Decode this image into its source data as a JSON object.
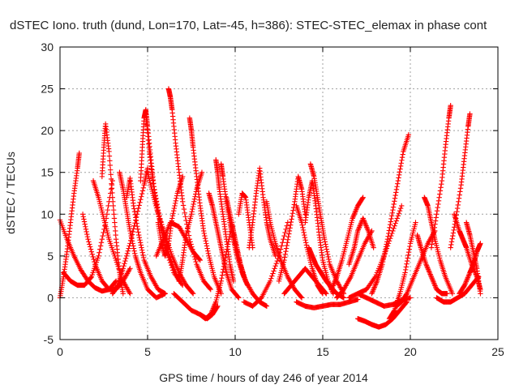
{
  "chart_data": {
    "type": "scatter",
    "title": "dSTEC Iono. truth (dund, Lon=170, Lat=-45, h=386): STEC-STEC_elemax in phase cont",
    "xlabel": "GPS time / hours of day 246 of year 2014",
    "ylabel": "dSTEC  / TECUs",
    "xlim": [
      0,
      25
    ],
    "ylim": [
      -5,
      30
    ],
    "x_ticks": [
      "0",
      "5",
      "10",
      "15",
      "20",
      "25"
    ],
    "y_ticks": [
      "-5",
      "0",
      "5",
      "10",
      "15",
      "20",
      "25",
      "30"
    ],
    "grid": true,
    "marker": "plus",
    "color": "#ff0000",
    "series": [
      {
        "x": [
          0.0,
          0.4,
          0.8,
          1.2,
          1.6,
          2.0,
          2.4,
          2.8,
          3.2
        ],
        "y": [
          9.3,
          7.0,
          5.0,
          3.3,
          2.0,
          1.2,
          0.8,
          1.0,
          2.0
        ]
      },
      {
        "x": [
          0.0,
          0.2,
          0.4,
          0.6,
          0.8,
          1.0,
          1.1
        ],
        "y": [
          0.0,
          2.5,
          5.5,
          9.0,
          12.5,
          15.5,
          17.3
        ]
      },
      {
        "x": [
          0.2,
          0.6,
          1.0,
          1.4,
          1.8,
          2.2,
          2.6,
          3.0
        ],
        "y": [
          3.0,
          2.0,
          1.5,
          1.5,
          2.5,
          5.0,
          9.0,
          14.0
        ]
      },
      {
        "x": [
          1.3,
          1.6,
          2.0,
          2.4,
          2.8,
          3.2,
          3.6,
          4.0
        ],
        "y": [
          10.0,
          7.0,
          4.0,
          2.0,
          1.0,
          1.0,
          2.0,
          3.5
        ]
      },
      {
        "x": [
          1.9,
          2.2,
          2.5,
          2.8,
          3.2,
          3.6,
          4.0
        ],
        "y": [
          14.0,
          12.0,
          9.5,
          7.0,
          4.5,
          2.0,
          0.5
        ]
      },
      {
        "x": [
          2.4,
          2.5,
          2.6,
          2.8,
          3.0,
          3.2,
          3.4,
          3.6
        ],
        "y": [
          14.5,
          18.0,
          20.8,
          17.5,
          12.0,
          7.0,
          3.0,
          0.5
        ]
      },
      {
        "x": [
          3.0,
          3.3,
          3.6,
          4.0,
          4.4,
          4.8,
          5.0
        ],
        "y": [
          0.5,
          1.5,
          3.5,
          6.5,
          10.0,
          13.5,
          15.5
        ]
      },
      {
        "x": [
          3.4,
          3.6,
          3.8,
          4.0,
          4.3,
          4.6,
          5.0,
          5.5,
          6.0
        ],
        "y": [
          15.0,
          13.0,
          10.5,
          8.0,
          5.0,
          3.0,
          1.0,
          0.0,
          0.5
        ]
      },
      {
        "x": [
          3.8,
          4.0,
          4.2,
          4.5,
          4.8,
          5.2,
          5.6,
          6.0
        ],
        "y": [
          12.0,
          14.3,
          11.0,
          7.5,
          4.5,
          2.5,
          1.0,
          0.5
        ]
      },
      {
        "x": [
          4.6,
          4.7,
          4.8,
          4.9,
          5.0,
          5.2,
          5.4,
          5.7,
          6.0,
          6.5,
          7.0
        ],
        "y": [
          14.0,
          18.0,
          21.5,
          22.5,
          20.5,
          16.5,
          12.5,
          9.0,
          6.0,
          3.0,
          1.5
        ]
      },
      {
        "x": [
          4.9,
          5.1,
          5.3,
          5.6,
          6.0,
          6.4,
          6.8
        ],
        "y": [
          22.0,
          17.5,
          14.0,
          10.5,
          7.0,
          4.0,
          2.0
        ]
      },
      {
        "x": [
          5.0,
          5.3,
          5.6,
          6.0,
          6.4,
          6.8,
          7.2,
          7.6
        ],
        "y": [
          15.0,
          12.5,
          10.0,
          7.5,
          5.0,
          3.0,
          1.5,
          0.5
        ]
      },
      {
        "x": [
          5.6,
          5.8,
          6.0,
          6.2,
          6.4,
          6.7,
          7.0
        ],
        "y": [
          9.0,
          6.5,
          5.0,
          6.5,
          9.5,
          12.5,
          14.5
        ]
      },
      {
        "x": [
          6.2,
          6.3,
          6.4,
          6.6,
          6.8,
          7.0,
          7.4,
          7.8,
          8.2,
          8.6
        ],
        "y": [
          25.0,
          24.0,
          22.5,
          18.5,
          15.0,
          11.5,
          7.0,
          4.0,
          2.0,
          1.0
        ]
      },
      {
        "x": [
          5.5,
          5.9,
          6.3,
          6.8,
          7.2,
          7.6,
          8.0
        ],
        "y": [
          5.0,
          7.0,
          9.0,
          8.5,
          7.0,
          5.5,
          4.5
        ]
      },
      {
        "x": [
          6.8,
          7.0,
          7.2,
          7.5,
          7.8,
          8.1
        ],
        "y": [
          2.0,
          4.5,
          7.5,
          10.0,
          13.0,
          15.0
        ]
      },
      {
        "x": [
          7.4,
          7.5,
          7.6,
          7.8,
          8.0,
          8.2,
          8.5,
          8.8,
          9.2
        ],
        "y": [
          21.5,
          20.0,
          18.0,
          14.5,
          11.0,
          8.0,
          5.0,
          2.5,
          0.5
        ]
      },
      {
        "x": [
          6.5,
          7.0,
          7.5,
          8.0,
          8.4,
          8.7,
          9.0
        ],
        "y": [
          0.5,
          -0.5,
          -1.5,
          -2.0,
          -2.5,
          -2.0,
          -1.0
        ]
      },
      {
        "x": [
          8.0,
          8.3,
          8.6,
          8.9,
          9.2,
          9.5,
          9.8
        ],
        "y": [
          -2.0,
          -2.5,
          -2.0,
          -0.5,
          2.0,
          5.5,
          8.5
        ]
      },
      {
        "x": [
          8.5,
          8.7,
          8.9,
          9.1,
          9.3,
          9.5,
          9.8,
          10.2
        ],
        "y": [
          12.5,
          11.0,
          9.0,
          7.0,
          5.0,
          3.0,
          1.0,
          0.0
        ]
      },
      {
        "x": [
          8.9,
          9.0,
          9.1,
          9.3,
          9.5,
          9.7,
          9.9
        ],
        "y": [
          16.5,
          15.0,
          13.0,
          10.0,
          7.0,
          4.0,
          2.0
        ]
      },
      {
        "x": [
          9.2,
          9.3,
          9.5,
          9.7,
          9.9,
          10.1,
          10.4,
          10.7
        ],
        "y": [
          16.0,
          14.5,
          11.5,
          9.0,
          7.0,
          5.0,
          3.0,
          1.5
        ]
      },
      {
        "x": [
          9.5,
          9.7,
          9.9,
          10.1,
          10.3,
          10.5
        ],
        "y": [
          12.0,
          10.0,
          8.0,
          6.0,
          4.0,
          2.5
        ]
      },
      {
        "x": [
          9.8,
          10.0,
          10.3,
          10.6,
          11.0,
          11.4,
          11.8
        ],
        "y": [
          9.0,
          6.5,
          4.0,
          2.0,
          0.5,
          -0.5,
          -1.0
        ]
      },
      {
        "x": [
          10.2,
          10.4,
          10.6,
          10.8,
          11.0
        ],
        "y": [
          10.0,
          12.5,
          12.0,
          9.0,
          6.0
        ]
      },
      {
        "x": [
          10.8,
          11.0,
          11.2,
          11.4,
          11.6,
          11.8,
          12.0,
          12.3
        ],
        "y": [
          6.0,
          9.0,
          12.5,
          15.5,
          12.0,
          9.0,
          7.0,
          5.0
        ]
      },
      {
        "x": [
          10.5,
          11.0,
          11.5,
          12.0,
          12.5,
          13.0
        ],
        "y": [
          -0.5,
          -1.0,
          0.0,
          2.0,
          5.0,
          9.0
        ]
      },
      {
        "x": [
          11.8,
          12.0,
          12.3,
          12.6,
          13.0,
          13.4,
          13.8
        ],
        "y": [
          11.5,
          9.0,
          6.5,
          4.5,
          2.5,
          1.0,
          0.0
        ]
      },
      {
        "x": [
          12.5,
          12.8,
          13.1,
          13.4,
          13.6,
          13.8,
          14.0
        ],
        "y": [
          2.0,
          4.5,
          8.0,
          11.5,
          14.5,
          13.0,
          10.0
        ]
      },
      {
        "x": [
          12.8,
          13.2,
          13.6,
          14.0,
          14.4,
          14.8,
          15.2
        ],
        "y": [
          0.5,
          1.5,
          2.5,
          3.5,
          2.5,
          1.5,
          0.5
        ]
      },
      {
        "x": [
          13.5,
          13.8,
          14.1,
          14.4,
          14.7,
          15.0
        ],
        "y": [
          11.0,
          9.0,
          6.0,
          3.5,
          1.5,
          0.5
        ]
      },
      {
        "x": [
          14.0,
          14.2,
          14.4,
          14.6,
          14.8,
          15.0,
          15.3,
          15.6
        ],
        "y": [
          9.0,
          12.0,
          14.0,
          11.0,
          7.5,
          4.5,
          2.0,
          0.5
        ]
      },
      {
        "x": [
          14.2,
          14.4,
          14.6,
          14.9,
          15.2,
          15.5,
          15.8,
          16.2
        ],
        "y": [
          6.0,
          5.0,
          4.0,
          3.0,
          2.0,
          1.2,
          0.5,
          0.0
        ]
      },
      {
        "x": [
          14.3,
          14.5,
          14.7,
          14.9,
          15.1,
          15.4,
          15.8,
          16.2
        ],
        "y": [
          16.0,
          14.5,
          12.0,
          9.5,
          7.0,
          4.0,
          2.0,
          0.5
        ]
      },
      {
        "x": [
          13.5,
          14.0,
          14.5,
          15.0,
          15.5,
          16.0,
          16.5,
          17.0
        ],
        "y": [
          -0.5,
          -1.0,
          -1.2,
          -1.0,
          -0.8,
          -0.8,
          -0.5,
          -0.2
        ]
      },
      {
        "x": [
          15.5,
          15.8,
          16.1,
          16.4,
          16.7,
          17.0,
          17.3
        ],
        "y": [
          1.0,
          2.5,
          4.5,
          7.0,
          9.5,
          11.0,
          12.0
        ]
      },
      {
        "x": [
          15.8,
          16.2,
          16.6,
          17.0,
          17.4,
          17.8
        ],
        "y": [
          0.0,
          1.0,
          2.5,
          4.5,
          6.5,
          8.0
        ]
      },
      {
        "x": [
          16.5,
          16.8,
          17.0,
          17.3,
          17.6,
          17.9
        ],
        "y": [
          4.0,
          6.0,
          8.0,
          9.5,
          8.0,
          6.0
        ]
      },
      {
        "x": [
          16.5,
          17.0,
          17.5,
          18.0,
          18.5,
          19.0,
          19.5
        ],
        "y": [
          0.0,
          0.5,
          1.0,
          2.5,
          5.0,
          8.0,
          11.0
        ]
      },
      {
        "x": [
          17.8,
          18.1,
          18.4,
          18.7,
          19.0,
          19.3,
          19.6,
          19.9
        ],
        "y": [
          0.5,
          2.0,
          4.0,
          7.0,
          10.5,
          14.0,
          17.5,
          19.5
        ]
      },
      {
        "x": [
          17.0,
          17.5,
          18.0,
          18.5,
          19.0,
          19.5,
          20.0
        ],
        "y": [
          0.5,
          0.0,
          -0.5,
          -1.0,
          -0.8,
          -0.3,
          0.0
        ]
      },
      {
        "x": [
          17.0,
          17.4,
          17.8,
          18.2,
          18.6,
          19.0,
          19.4,
          19.8
        ],
        "y": [
          -2.5,
          -2.8,
          -3.2,
          -3.5,
          -3.2,
          -2.5,
          -1.5,
          -0.5
        ]
      },
      {
        "x": [
          18.8,
          19.1,
          19.4,
          19.7,
          20.0,
          20.3
        ],
        "y": [
          -2.5,
          -1.5,
          0.5,
          3.0,
          6.5,
          9.0
        ]
      },
      {
        "x": [
          19.2,
          19.5,
          19.8,
          20.2,
          20.6,
          21.0,
          21.4
        ],
        "y": [
          -1.0,
          -0.5,
          0.5,
          2.5,
          4.5,
          6.5,
          8.0
        ]
      },
      {
        "x": [
          20.4,
          20.6,
          20.9,
          21.2,
          21.5,
          21.8,
          22.1
        ],
        "y": [
          7.5,
          6.0,
          4.0,
          2.5,
          1.0,
          0.5,
          0.5
        ]
      },
      {
        "x": [
          20.8,
          21.0,
          21.2,
          21.4,
          21.7,
          22.0,
          22.4
        ],
        "y": [
          12.0,
          11.0,
          9.0,
          7.0,
          4.5,
          2.5,
          0.5
        ]
      },
      {
        "x": [
          21.2,
          21.5,
          21.8,
          22.0,
          22.2,
          22.3
        ],
        "y": [
          6.0,
          10.0,
          14.0,
          18.0,
          21.5,
          23.0
        ]
      },
      {
        "x": [
          21.5,
          21.9,
          22.3,
          22.7,
          23.1,
          23.5,
          23.9
        ],
        "y": [
          0.0,
          -0.5,
          -0.5,
          0.0,
          0.5,
          1.5,
          2.5
        ]
      },
      {
        "x": [
          22.3,
          22.6,
          22.9,
          23.1,
          23.3,
          23.4
        ],
        "y": [
          6.0,
          9.5,
          13.5,
          17.0,
          20.5,
          22.0
        ]
      },
      {
        "x": [
          22.5,
          22.8,
          23.0,
          23.2,
          23.5,
          23.8,
          24.0
        ],
        "y": [
          10.0,
          8.0,
          7.0,
          6.0,
          4.0,
          2.5,
          1.0
        ]
      },
      {
        "x": [
          23.2,
          23.4,
          23.6,
          23.8,
          24.0
        ],
        "y": [
          9.0,
          7.5,
          5.5,
          3.5,
          0.5
        ]
      },
      {
        "x": [
          22.8,
          23.1,
          23.4,
          23.6,
          23.8,
          24.0
        ],
        "y": [
          0.5,
          1.5,
          3.0,
          4.0,
          5.5,
          6.5
        ]
      }
    ]
  }
}
